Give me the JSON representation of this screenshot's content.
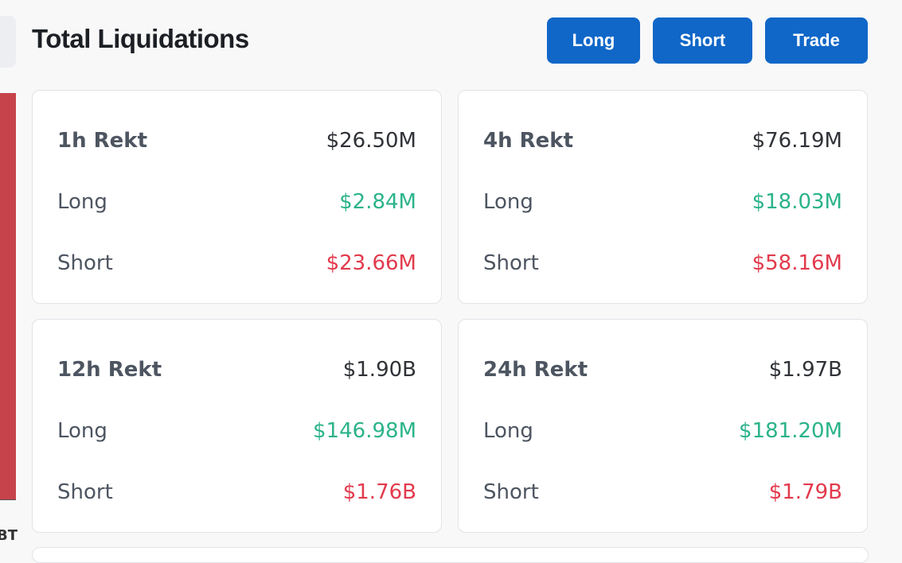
{
  "header": {
    "title": "Total Liquidations",
    "buttons": [
      "Long",
      "Short",
      "Trade"
    ]
  },
  "side_fragment": "BT",
  "cards": [
    {
      "rows": [
        [
          "1h Rekt",
          "$26.50M"
        ],
        [
          "Long",
          "$2.84M"
        ],
        [
          "Short",
          "$23.66M"
        ]
      ]
    },
    {
      "rows": [
        [
          "4h Rekt",
          "$76.19M"
        ],
        [
          "Long",
          "$18.03M"
        ],
        [
          "Short",
          "$58.16M"
        ]
      ]
    },
    {
      "rows": [
        [
          "12h Rekt",
          "$1.90B"
        ],
        [
          "Long",
          "$146.98M"
        ],
        [
          "Short",
          "$1.76B"
        ]
      ]
    },
    {
      "rows": [
        [
          "24h Rekt",
          "$1.97B"
        ],
        [
          "Long",
          "$181.20M"
        ],
        [
          "Short",
          "$1.79B"
        ]
      ]
    }
  ]
}
